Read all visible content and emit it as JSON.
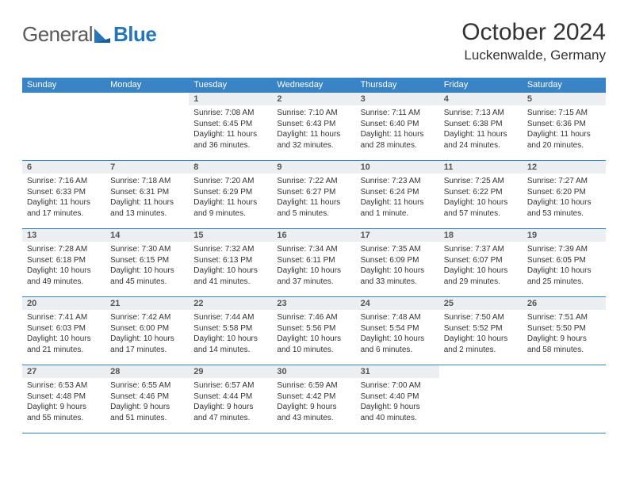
{
  "colors": {
    "brand_blue": "#2575b7",
    "header_bg": "#3884c7",
    "daynum_bg": "#eceff1",
    "text": "#333333",
    "logo_gray": "#5a5a5a"
  },
  "logo": {
    "part1": "General",
    "part2": "Blue"
  },
  "title": "October 2024",
  "location": "Luckenwalde, Germany",
  "weekday_headers": [
    "Sunday",
    "Monday",
    "Tuesday",
    "Wednesday",
    "Thursday",
    "Friday",
    "Saturday"
  ],
  "weeks": [
    [
      {
        "empty": true
      },
      {
        "empty": true
      },
      {
        "num": "1",
        "sunrise": "Sunrise: 7:08 AM",
        "sunset": "Sunset: 6:45 PM",
        "daylight": "Daylight: 11 hours and 36 minutes."
      },
      {
        "num": "2",
        "sunrise": "Sunrise: 7:10 AM",
        "sunset": "Sunset: 6:43 PM",
        "daylight": "Daylight: 11 hours and 32 minutes."
      },
      {
        "num": "3",
        "sunrise": "Sunrise: 7:11 AM",
        "sunset": "Sunset: 6:40 PM",
        "daylight": "Daylight: 11 hours and 28 minutes."
      },
      {
        "num": "4",
        "sunrise": "Sunrise: 7:13 AM",
        "sunset": "Sunset: 6:38 PM",
        "daylight": "Daylight: 11 hours and 24 minutes."
      },
      {
        "num": "5",
        "sunrise": "Sunrise: 7:15 AM",
        "sunset": "Sunset: 6:36 PM",
        "daylight": "Daylight: 11 hours and 20 minutes."
      }
    ],
    [
      {
        "num": "6",
        "sunrise": "Sunrise: 7:16 AM",
        "sunset": "Sunset: 6:33 PM",
        "daylight": "Daylight: 11 hours and 17 minutes."
      },
      {
        "num": "7",
        "sunrise": "Sunrise: 7:18 AM",
        "sunset": "Sunset: 6:31 PM",
        "daylight": "Daylight: 11 hours and 13 minutes."
      },
      {
        "num": "8",
        "sunrise": "Sunrise: 7:20 AM",
        "sunset": "Sunset: 6:29 PM",
        "daylight": "Daylight: 11 hours and 9 minutes."
      },
      {
        "num": "9",
        "sunrise": "Sunrise: 7:22 AM",
        "sunset": "Sunset: 6:27 PM",
        "daylight": "Daylight: 11 hours and 5 minutes."
      },
      {
        "num": "10",
        "sunrise": "Sunrise: 7:23 AM",
        "sunset": "Sunset: 6:24 PM",
        "daylight": "Daylight: 11 hours and 1 minute."
      },
      {
        "num": "11",
        "sunrise": "Sunrise: 7:25 AM",
        "sunset": "Sunset: 6:22 PM",
        "daylight": "Daylight: 10 hours and 57 minutes."
      },
      {
        "num": "12",
        "sunrise": "Sunrise: 7:27 AM",
        "sunset": "Sunset: 6:20 PM",
        "daylight": "Daylight: 10 hours and 53 minutes."
      }
    ],
    [
      {
        "num": "13",
        "sunrise": "Sunrise: 7:28 AM",
        "sunset": "Sunset: 6:18 PM",
        "daylight": "Daylight: 10 hours and 49 minutes."
      },
      {
        "num": "14",
        "sunrise": "Sunrise: 7:30 AM",
        "sunset": "Sunset: 6:15 PM",
        "daylight": "Daylight: 10 hours and 45 minutes."
      },
      {
        "num": "15",
        "sunrise": "Sunrise: 7:32 AM",
        "sunset": "Sunset: 6:13 PM",
        "daylight": "Daylight: 10 hours and 41 minutes."
      },
      {
        "num": "16",
        "sunrise": "Sunrise: 7:34 AM",
        "sunset": "Sunset: 6:11 PM",
        "daylight": "Daylight: 10 hours and 37 minutes."
      },
      {
        "num": "17",
        "sunrise": "Sunrise: 7:35 AM",
        "sunset": "Sunset: 6:09 PM",
        "daylight": "Daylight: 10 hours and 33 minutes."
      },
      {
        "num": "18",
        "sunrise": "Sunrise: 7:37 AM",
        "sunset": "Sunset: 6:07 PM",
        "daylight": "Daylight: 10 hours and 29 minutes."
      },
      {
        "num": "19",
        "sunrise": "Sunrise: 7:39 AM",
        "sunset": "Sunset: 6:05 PM",
        "daylight": "Daylight: 10 hours and 25 minutes."
      }
    ],
    [
      {
        "num": "20",
        "sunrise": "Sunrise: 7:41 AM",
        "sunset": "Sunset: 6:03 PM",
        "daylight": "Daylight: 10 hours and 21 minutes."
      },
      {
        "num": "21",
        "sunrise": "Sunrise: 7:42 AM",
        "sunset": "Sunset: 6:00 PM",
        "daylight": "Daylight: 10 hours and 17 minutes."
      },
      {
        "num": "22",
        "sunrise": "Sunrise: 7:44 AM",
        "sunset": "Sunset: 5:58 PM",
        "daylight": "Daylight: 10 hours and 14 minutes."
      },
      {
        "num": "23",
        "sunrise": "Sunrise: 7:46 AM",
        "sunset": "Sunset: 5:56 PM",
        "daylight": "Daylight: 10 hours and 10 minutes."
      },
      {
        "num": "24",
        "sunrise": "Sunrise: 7:48 AM",
        "sunset": "Sunset: 5:54 PM",
        "daylight": "Daylight: 10 hours and 6 minutes."
      },
      {
        "num": "25",
        "sunrise": "Sunrise: 7:50 AM",
        "sunset": "Sunset: 5:52 PM",
        "daylight": "Daylight: 10 hours and 2 minutes."
      },
      {
        "num": "26",
        "sunrise": "Sunrise: 7:51 AM",
        "sunset": "Sunset: 5:50 PM",
        "daylight": "Daylight: 9 hours and 58 minutes."
      }
    ],
    [
      {
        "num": "27",
        "sunrise": "Sunrise: 6:53 AM",
        "sunset": "Sunset: 4:48 PM",
        "daylight": "Daylight: 9 hours and 55 minutes."
      },
      {
        "num": "28",
        "sunrise": "Sunrise: 6:55 AM",
        "sunset": "Sunset: 4:46 PM",
        "daylight": "Daylight: 9 hours and 51 minutes."
      },
      {
        "num": "29",
        "sunrise": "Sunrise: 6:57 AM",
        "sunset": "Sunset: 4:44 PM",
        "daylight": "Daylight: 9 hours and 47 minutes."
      },
      {
        "num": "30",
        "sunrise": "Sunrise: 6:59 AM",
        "sunset": "Sunset: 4:42 PM",
        "daylight": "Daylight: 9 hours and 43 minutes."
      },
      {
        "num": "31",
        "sunrise": "Sunrise: 7:00 AM",
        "sunset": "Sunset: 4:40 PM",
        "daylight": "Daylight: 9 hours and 40 minutes."
      },
      {
        "empty": true
      },
      {
        "empty": true
      }
    ]
  ]
}
